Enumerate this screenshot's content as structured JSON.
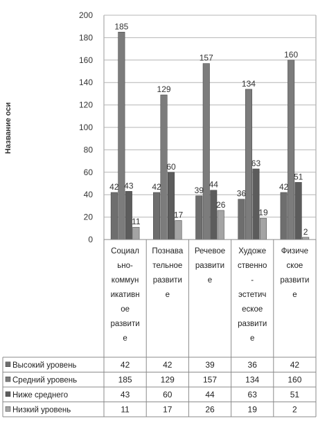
{
  "chart_data": {
    "type": "bar",
    "ylabel": "Название оси",
    "ylim": [
      0,
      200
    ],
    "yticks": [
      0,
      20,
      40,
      60,
      80,
      100,
      120,
      140,
      160,
      180,
      200
    ],
    "grid": true,
    "legend": "table-left",
    "categories": [
      [
        "Социал",
        "ьно-",
        "коммун",
        "икативн",
        "ое",
        "развити",
        "е"
      ],
      [
        "Познава",
        "тельное",
        "развити",
        "е"
      ],
      [
        "Речевое",
        "развити",
        "е"
      ],
      [
        "Художе",
        "ственно",
        "-",
        "эстетич",
        "еское",
        "развити",
        "е"
      ],
      [
        "Физиче",
        "ское",
        "развити",
        "е"
      ]
    ],
    "series": [
      {
        "name": "Высокий уровень",
        "values": [
          42,
          42,
          39,
          36,
          42
        ]
      },
      {
        "name": "Средний уровень",
        "values": [
          185,
          129,
          157,
          134,
          160
        ]
      },
      {
        "name": "Ниже среднего",
        "values": [
          43,
          60,
          44,
          63,
          51
        ]
      },
      {
        "name": "Низкий уровень",
        "values": [
          11,
          17,
          26,
          19,
          2
        ]
      }
    ],
    "colors": [
      "#6e6e6e",
      "#7c7c7c",
      "#5c5c5c",
      "#a4a4a4"
    ]
  }
}
